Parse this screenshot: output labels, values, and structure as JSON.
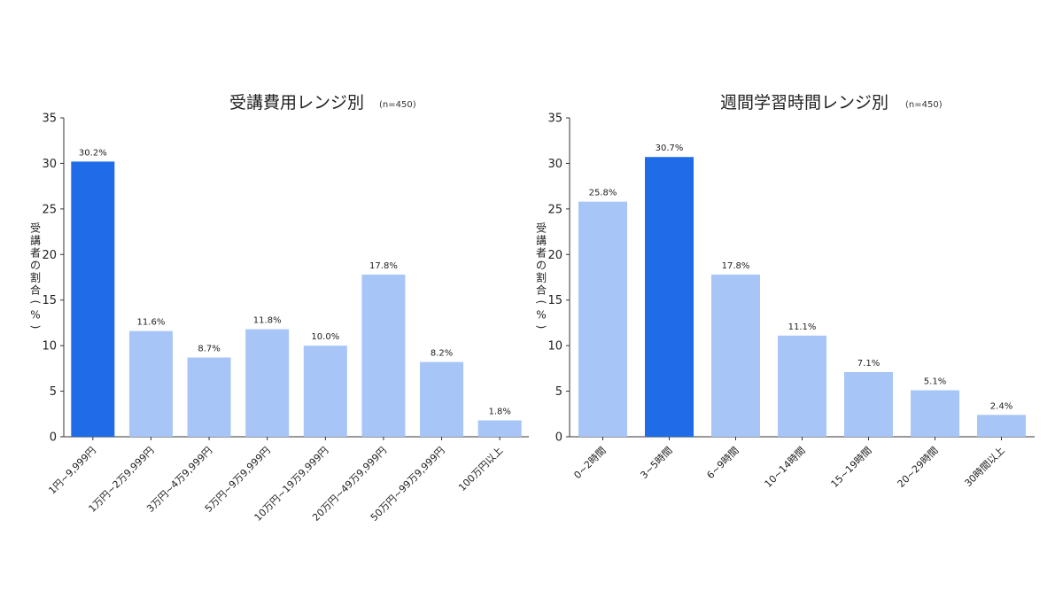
{
  "chart_data": [
    {
      "type": "bar",
      "title": "受講費用レンジ別",
      "subtitle": "(n=450)",
      "xlabel": "",
      "ylabel": "受講者の割合（%）",
      "ylim": [
        0,
        35
      ],
      "yticks": [
        0,
        5,
        10,
        15,
        20,
        25,
        30,
        35
      ],
      "grid": false,
      "categories": [
        "1円~9,999円",
        "1万円~2万9,999円",
        "3万円~4万9,999円",
        "5万円~9万9,999円",
        "10万円~19万9,999円",
        "20万円~49万9,999円",
        "50万円~99万9,999円",
        "100万円以上"
      ],
      "values": [
        30.2,
        11.6,
        8.7,
        11.8,
        10.0,
        17.8,
        8.2,
        1.8
      ],
      "value_labels": [
        "30.2%",
        "11.6%",
        "8.7%",
        "11.8%",
        "10.0%",
        "17.8%",
        "8.2%",
        "1.8%"
      ],
      "highlight_index": 0,
      "colors": {
        "highlight": "#1f6be8",
        "normal": "#a7c5f7"
      }
    },
    {
      "type": "bar",
      "title": "週間学習時間レンジ別",
      "subtitle": "(n=450)",
      "xlabel": "",
      "ylabel": "受講者の割合（%）",
      "ylim": [
        0,
        35
      ],
      "yticks": [
        0,
        5,
        10,
        15,
        20,
        25,
        30,
        35
      ],
      "grid": false,
      "categories": [
        "0~2時間",
        "3~5時間",
        "6~9時間",
        "10~14時間",
        "15~19時間",
        "20~29時間",
        "30時間以上"
      ],
      "values": [
        25.8,
        30.7,
        17.8,
        11.1,
        7.1,
        5.1,
        2.4
      ],
      "value_labels": [
        "25.8%",
        "30.7%",
        "17.8%",
        "11.1%",
        "7.1%",
        "5.1%",
        "2.4%"
      ],
      "highlight_index": 1,
      "colors": {
        "highlight": "#1f6be8",
        "normal": "#a7c5f7"
      }
    }
  ]
}
